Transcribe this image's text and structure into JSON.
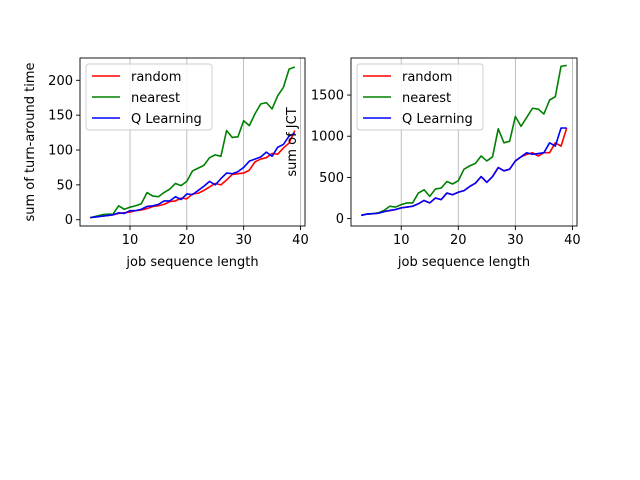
{
  "chart_data": [
    {
      "type": "line",
      "xlabel": "job sequence length",
      "ylabel": "sum of turn-around time",
      "xlim": [
        1.2,
        40.8
      ],
      "ylim": [
        -9,
        232
      ],
      "xticks": [
        10,
        20,
        30,
        40
      ],
      "yticks": [
        0,
        50,
        100,
        150,
        200
      ],
      "grid": "vertical at x ticks",
      "legend": "top-left",
      "x": [
        3,
        4,
        5,
        6,
        7,
        8,
        9,
        10,
        11,
        12,
        13,
        14,
        15,
        16,
        17,
        18,
        19,
        20,
        21,
        22,
        23,
        24,
        25,
        26,
        27,
        28,
        29,
        30,
        31,
        32,
        33,
        34,
        35,
        36,
        37,
        38,
        39
      ],
      "series": [
        {
          "name": "random",
          "color": "#ff0000",
          "values": [
            3,
            4,
            5,
            6,
            7,
            9,
            10,
            11,
            13,
            14,
            16,
            19,
            20,
            22,
            26,
            27,
            31,
            30,
            37,
            38,
            42,
            47,
            52,
            50,
            57,
            65,
            66,
            67,
            71,
            83,
            87,
            89,
            95,
            94,
            103,
            110,
            128
          ]
        },
        {
          "name": "nearest",
          "color": "#008000",
          "values": [
            3,
            5,
            7,
            8,
            8,
            20,
            15,
            18,
            20,
            23,
            39,
            34,
            33,
            39,
            44,
            52,
            49,
            55,
            70,
            74,
            78,
            89,
            93,
            91,
            128,
            118,
            119,
            142,
            135,
            152,
            166,
            168,
            159,
            178,
            190,
            216,
            219
          ]
        },
        {
          "name": "Q Learning",
          "color": "#0000ff",
          "values": [
            3,
            4,
            5,
            6,
            7,
            10,
            9,
            13,
            13,
            15,
            19,
            20,
            22,
            27,
            27,
            33,
            29,
            37,
            36,
            42,
            48,
            55,
            50,
            59,
            67,
            66,
            69,
            75,
            84,
            87,
            90,
            97,
            91,
            104,
            108,
            120,
            124
          ]
        }
      ]
    },
    {
      "type": "line",
      "xlabel": "job sequence length",
      "ylabel": "sum of JCT",
      "xlim": [
        1.2,
        40.8
      ],
      "ylim": [
        -90,
        1950
      ],
      "xticks": [
        10,
        20,
        30,
        40
      ],
      "yticks": [
        0,
        500,
        1000,
        1500
      ],
      "grid": "vertical at x ticks",
      "legend": "top-left",
      "x": [
        3,
        4,
        5,
        6,
        7,
        8,
        9,
        10,
        11,
        12,
        13,
        14,
        15,
        16,
        17,
        18,
        19,
        20,
        21,
        22,
        23,
        24,
        25,
        26,
        27,
        28,
        29,
        30,
        31,
        32,
        33,
        34,
        35,
        36,
        37,
        38,
        39
      ],
      "series": [
        {
          "name": "random",
          "color": "#ff0000",
          "values": [
            40,
            55,
            60,
            65,
            85,
            95,
            110,
            130,
            140,
            150,
            180,
            220,
            190,
            250,
            230,
            310,
            290,
            320,
            340,
            390,
            430,
            510,
            440,
            510,
            620,
            580,
            600,
            700,
            750,
            780,
            800,
            760,
            800,
            800,
            920,
            880,
            1100
          ]
        },
        {
          "name": "nearest",
          "color": "#008000",
          "values": [
            40,
            55,
            60,
            70,
            100,
            150,
            140,
            170,
            190,
            190,
            310,
            350,
            270,
            360,
            370,
            450,
            420,
            460,
            600,
            640,
            670,
            760,
            700,
            750,
            1090,
            920,
            940,
            1240,
            1120,
            1230,
            1340,
            1330,
            1270,
            1440,
            1480,
            1850,
            1860
          ]
        },
        {
          "name": "Q Learning",
          "color": "#0000ff",
          "values": [
            40,
            55,
            60,
            65,
            85,
            100,
            110,
            130,
            140,
            150,
            180,
            220,
            190,
            250,
            230,
            310,
            290,
            320,
            340,
            390,
            430,
            510,
            440,
            510,
            620,
            580,
            600,
            700,
            750,
            800,
            780,
            790,
            800,
            920,
            880,
            1100,
            1100
          ]
        }
      ]
    }
  ]
}
